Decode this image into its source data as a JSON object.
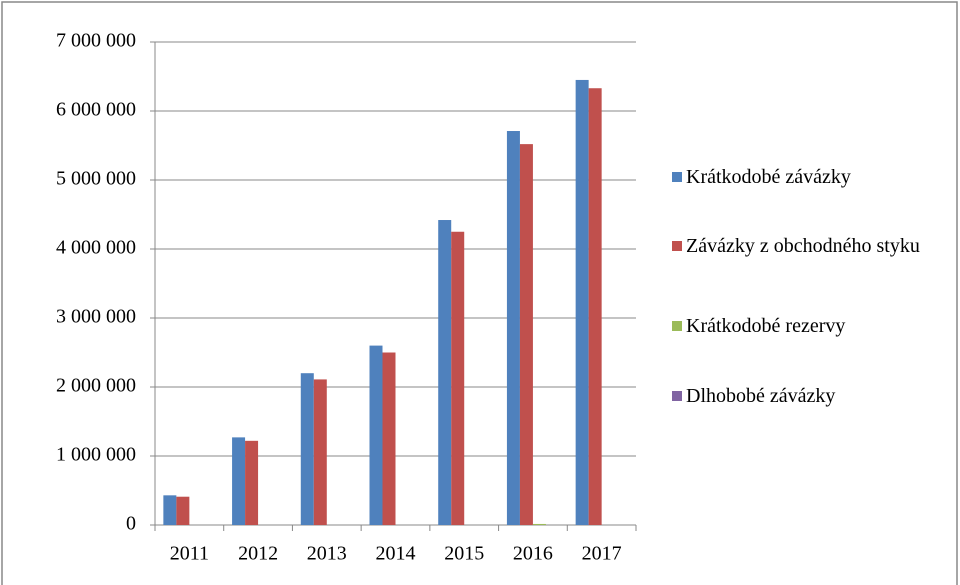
{
  "chart_data": {
    "type": "bar",
    "categories": [
      "2011",
      "2012",
      "2013",
      "2014",
      "2015",
      "2016",
      "2017"
    ],
    "series": [
      {
        "name": "Krátkodobé závázky",
        "color": "#4f81bd",
        "values": [
          430000,
          1270000,
          2200000,
          2600000,
          4420000,
          5710000,
          6450000
        ]
      },
      {
        "name": "Závázky z obchodného styku",
        "color": "#c0504d",
        "values": [
          410000,
          1220000,
          2110000,
          2500000,
          4250000,
          5520000,
          6330000
        ]
      },
      {
        "name": "Krátkodobé rezervy",
        "color": "#9bbb59",
        "values": [
          0,
          0,
          0,
          0,
          0,
          15000,
          0
        ]
      },
      {
        "name": "Dlhobobé závázky",
        "color": "#8064a2",
        "values": [
          0,
          0,
          0,
          0,
          0,
          0,
          0
        ]
      }
    ],
    "ylim": [
      0,
      7000000
    ],
    "yticks": [
      0,
      {
        "value": 1000000,
        "label": "1 000 000"
      },
      {
        "value": 2000000,
        "label": "2 000 000"
      },
      {
        "value": 3000000,
        "label": "3 000 000"
      },
      {
        "value": 4000000,
        "label": "4 000 000"
      },
      {
        "value": 5000000,
        "label": "5 000 000"
      },
      {
        "value": 6000000,
        "label": "6 000 000"
      },
      {
        "value": 7000000,
        "label": "7 000 000"
      }
    ],
    "grid": true,
    "legend": "right"
  }
}
